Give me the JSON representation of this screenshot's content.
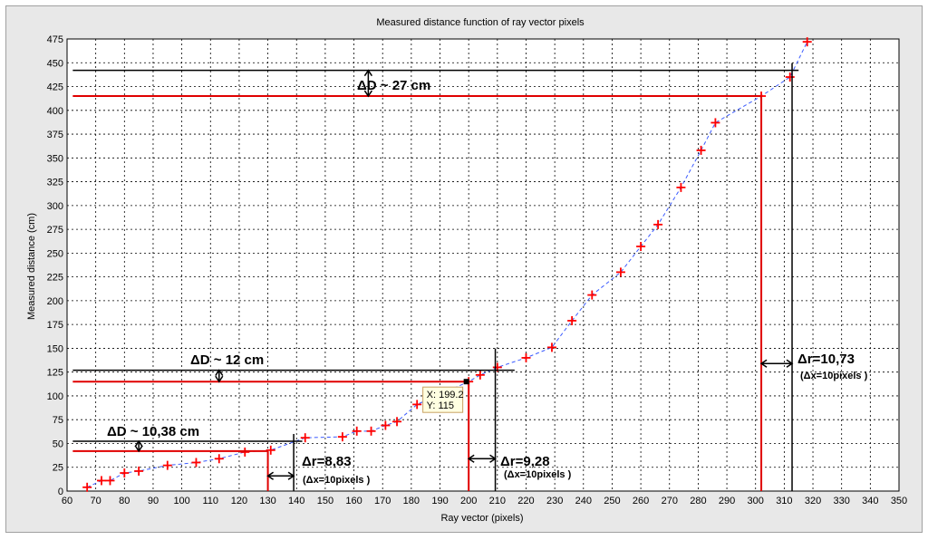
{
  "chart_data": {
    "type": "scatter",
    "title": "Measured distance function of ray vector pixels",
    "xlabel": "Ray vector (pixels)",
    "ylabel": "Measured distance (cm)",
    "xlim": [
      60,
      350
    ],
    "ylim": [
      0,
      475
    ],
    "xticks": [
      60,
      70,
      80,
      90,
      100,
      110,
      120,
      130,
      140,
      150,
      160,
      170,
      180,
      190,
      200,
      210,
      220,
      230,
      240,
      250,
      260,
      270,
      280,
      290,
      300,
      310,
      320,
      330,
      340,
      350
    ],
    "yticks": [
      0,
      25,
      50,
      75,
      100,
      125,
      150,
      175,
      200,
      225,
      250,
      275,
      300,
      325,
      350,
      375,
      400,
      425,
      450,
      475
    ],
    "grid": true,
    "series": [
      {
        "marker": "+",
        "marker_color": "#ff0000",
        "line_style": "dashed",
        "line_color": "#3b5bff",
        "x": [
          67,
          72,
          75,
          80,
          85,
          95,
          105,
          113,
          122,
          131,
          143,
          156,
          161,
          166,
          171,
          175,
          182,
          200,
          204,
          210,
          220,
          229,
          236,
          243,
          253,
          260,
          266,
          274,
          281,
          286,
          302,
          312,
          318
        ],
        "y": [
          4,
          11,
          11,
          19,
          21,
          27,
          30,
          34,
          41,
          43,
          56,
          57,
          63,
          63,
          69,
          73,
          91,
          115,
          122,
          130,
          140,
          151,
          179,
          206,
          230,
          257,
          280,
          319,
          358,
          387,
          415,
          435,
          472
        ]
      }
    ],
    "datatip": {
      "x": 199.2,
      "y": 115,
      "x_text": "X: 199.2",
      "y_text": "Y: 115"
    },
    "annotations": {
      "delta_d_1": "ΔD ~ 10,38 cm",
      "delta_d_2": "ΔD ~ 12 cm",
      "delta_d_3": "ΔD ~ 27 cm",
      "delta_r_1": "Δr=8,83",
      "delta_r_2": "Δr=9,28",
      "delta_r_3": "Δr=10,73",
      "delta_x_1": "(Δx=10pixels )",
      "delta_x_2": "(Δx=10pixels )",
      "delta_x_3": "(Δx=10pixels )"
    },
    "red_markers": [
      {
        "x": 130,
        "y": 42
      },
      {
        "x": 200,
        "y": 115
      },
      {
        "x": 302,
        "y": 415
      }
    ],
    "black_markers": [
      {
        "x": 139,
        "y": 52.38
      },
      {
        "x": 209.28,
        "y": 127
      },
      {
        "x": 312.73,
        "y": 442
      }
    ]
  }
}
